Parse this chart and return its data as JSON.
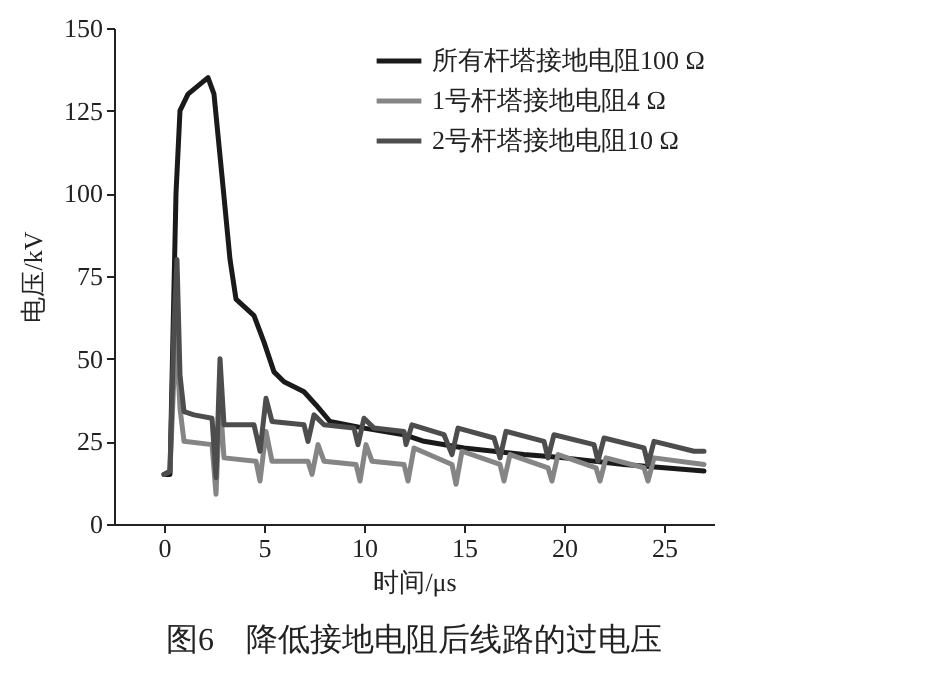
{
  "chart_data": {
    "type": "line",
    "xlabel": "时间/μs",
    "ylabel": "电压/kV",
    "annotations": [
      "图6　降低接地电阻后线路的过电压"
    ],
    "xlim": [
      -2.5,
      27.5
    ],
    "xticks": [
      0,
      5,
      10,
      15,
      20,
      25
    ],
    "ylim": [
      0,
      150
    ],
    "yticks": [
      0,
      25,
      50,
      75,
      100,
      125,
      150
    ],
    "grid": false,
    "legend": "top right",
    "marker": "none",
    "line_style": "solid",
    "series": [
      {
        "name": "所有杆塔接地电阻100 Ω",
        "color": "#1a1a1a",
        "x": [
          0,
          0.3,
          0.6,
          0.8,
          1.2,
          2.2,
          2.5,
          3.0,
          3.3,
          3.6,
          4.5,
          5.0,
          5.5,
          6.0,
          7,
          7.6,
          8.3,
          10,
          12,
          13,
          15,
          18,
          20,
          23,
          27
        ],
        "values": [
          15,
          15,
          100,
          125,
          130,
          135,
          130,
          99,
          80,
          68,
          63,
          55,
          46,
          43,
          40,
          36,
          31,
          29,
          27,
          25,
          23,
          21,
          20,
          18,
          16
        ]
      },
      {
        "name": "1号杆塔接地电阻4 Ω",
        "color": "#858585",
        "x": [
          0,
          0.3,
          0.5,
          0.6,
          0.8,
          1.0,
          2.4,
          2.6,
          2.8,
          3.0,
          4.6,
          4.8,
          5.1,
          5.4,
          7.2,
          7.4,
          7.7,
          8,
          9.6,
          9.8,
          10.1,
          10.4,
          12,
          12.2,
          12.5,
          14.4,
          14.6,
          14.9,
          16.8,
          17,
          17.3,
          19.2,
          19.4,
          19.7,
          21.6,
          21.8,
          22.1,
          24,
          24.2,
          24.5,
          27
        ],
        "values": [
          15,
          16,
          45,
          58,
          35,
          25,
          24,
          9,
          38,
          20,
          19,
          13,
          28,
          19,
          19,
          15,
          24,
          19,
          18,
          13,
          24,
          19,
          18,
          13,
          23,
          18,
          12,
          22,
          18,
          13,
          21,
          17,
          13,
          21,
          17,
          13,
          20,
          17,
          13,
          20,
          18
        ]
      },
      {
        "name": "2号杆塔接地电阻10 Ω",
        "color": "#4d4d4d",
        "x": [
          0,
          0.3,
          0.5,
          0.65,
          0.8,
          1.0,
          1.5,
          2.4,
          2.6,
          2.8,
          3.0,
          3.3,
          4.5,
          4.8,
          5.1,
          5.4,
          7.0,
          7.2,
          7.5,
          8,
          9.5,
          9.7,
          10,
          10.5,
          12,
          12.1,
          12.4,
          14,
          14.4,
          14.7,
          16.5,
          16.8,
          17.1,
          19,
          19.2,
          19.5,
          21.5,
          21.7,
          22,
          24,
          24.2,
          24.5,
          26.5,
          27
        ],
        "values": [
          15,
          16,
          60,
          80,
          45,
          34,
          33,
          32,
          14,
          50,
          30,
          30,
          30,
          22,
          38,
          31,
          30,
          25,
          33,
          30,
          29,
          24,
          32,
          29,
          28,
          24,
          30,
          27,
          21,
          29,
          26,
          20,
          28,
          25,
          20,
          27,
          24,
          19,
          26,
          23,
          18,
          25,
          22,
          22
        ]
      }
    ]
  }
}
